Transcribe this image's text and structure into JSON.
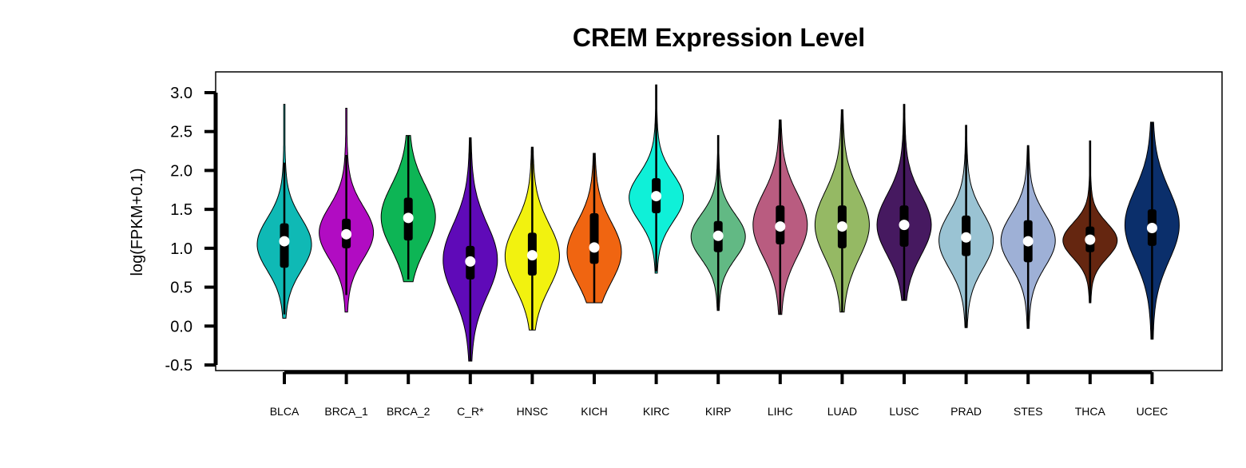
{
  "chart_data": {
    "type": "violin",
    "title": "CREM Expression Level",
    "xlabel": "",
    "ylabel": "log(FPKM+0.1)",
    "ylim": [
      -0.5,
      3.0
    ],
    "yticks": [
      "3.0",
      "2.5",
      "2.0",
      "1.5",
      "1.0",
      "0.5",
      "0.0",
      "-0.5"
    ],
    "grid": false,
    "legend": "none",
    "categories": [
      "BLCA",
      "BRCA_1",
      "BRCA_2",
      "C_R*",
      "HNSC",
      "KICH",
      "KIRC",
      "KIRP",
      "LIHC",
      "LUAD",
      "LUSC",
      "PRAD",
      "STES",
      "THCA",
      "UCEC"
    ],
    "colors": [
      "#0fb9b5",
      "#b10cc2",
      "#0db555",
      "#5f0ab8",
      "#f2f20f",
      "#f06511",
      "#0ff0d8",
      "#62b984",
      "#b95c80",
      "#95b964",
      "#461960",
      "#9ac3d3",
      "#9eb0d6",
      "#652610",
      "#0b2f6b"
    ],
    "series": [
      {
        "name": "BLCA",
        "min": 0.1,
        "q1": 0.75,
        "median": 1.09,
        "q3": 1.32,
        "max": 2.85,
        "whisker_low": 0.15,
        "whisker_high": 2.1,
        "mode": 1.05,
        "spread": 0.33
      },
      {
        "name": "BRCA_1",
        "min": 0.18,
        "q1": 1.0,
        "median": 1.18,
        "q3": 1.38,
        "max": 2.8,
        "whisker_low": 0.4,
        "whisker_high": 2.2,
        "mode": 1.2,
        "spread": 0.33
      },
      {
        "name": "BRCA_2",
        "min": 0.57,
        "q1": 1.1,
        "median": 1.39,
        "q3": 1.65,
        "max": 2.45,
        "whisker_low": 0.6,
        "whisker_high": 2.45,
        "mode": 1.4,
        "spread": 0.4
      },
      {
        "name": "C_R*",
        "min": -0.45,
        "q1": 0.6,
        "median": 0.83,
        "q3": 1.03,
        "max": 2.42,
        "whisker_low": -0.45,
        "whisker_high": 2.42,
        "mode": 0.85,
        "spread": 0.45
      },
      {
        "name": "HNSC",
        "min": -0.05,
        "q1": 0.65,
        "median": 0.91,
        "q3": 1.2,
        "max": 2.3,
        "whisker_low": -0.05,
        "whisker_high": 2.3,
        "mode": 0.9,
        "spread": 0.4
      },
      {
        "name": "KICH",
        "min": 0.3,
        "q1": 0.8,
        "median": 1.01,
        "q3": 1.45,
        "max": 2.22,
        "whisker_low": 0.3,
        "whisker_high": 2.22,
        "mode": 0.95,
        "spread": 0.38
      },
      {
        "name": "KIRC",
        "min": 0.68,
        "q1": 1.45,
        "median": 1.67,
        "q3": 1.9,
        "max": 3.1,
        "whisker_low": 0.7,
        "whisker_high": 3.1,
        "mode": 1.65,
        "spread": 0.3
      },
      {
        "name": "KIRP",
        "min": 0.2,
        "q1": 0.95,
        "median": 1.16,
        "q3": 1.35,
        "max": 2.45,
        "whisker_low": 0.2,
        "whisker_high": 2.45,
        "mode": 1.15,
        "spread": 0.28
      },
      {
        "name": "LIHC",
        "min": 0.15,
        "q1": 1.05,
        "median": 1.28,
        "q3": 1.55,
        "max": 2.65,
        "whisker_low": 0.15,
        "whisker_high": 2.65,
        "mode": 1.3,
        "spread": 0.4
      },
      {
        "name": "LUAD",
        "min": 0.18,
        "q1": 1.0,
        "median": 1.28,
        "q3": 1.55,
        "max": 2.78,
        "whisker_low": 0.18,
        "whisker_high": 2.78,
        "mode": 1.3,
        "spread": 0.42
      },
      {
        "name": "LUSC",
        "min": 0.33,
        "q1": 1.02,
        "median": 1.3,
        "q3": 1.55,
        "max": 2.85,
        "whisker_low": 0.33,
        "whisker_high": 2.85,
        "mode": 1.3,
        "spread": 0.38
      },
      {
        "name": "PRAD",
        "min": -0.02,
        "q1": 0.9,
        "median": 1.14,
        "q3": 1.42,
        "max": 2.58,
        "whisker_low": -0.02,
        "whisker_high": 2.58,
        "mode": 1.1,
        "spread": 0.35
      },
      {
        "name": "STES",
        "min": -0.03,
        "q1": 0.82,
        "median": 1.09,
        "q3": 1.36,
        "max": 2.32,
        "whisker_low": -0.03,
        "whisker_high": 2.32,
        "mode": 1.1,
        "spread": 0.33
      },
      {
        "name": "THCA",
        "min": 0.3,
        "q1": 0.95,
        "median": 1.11,
        "q3": 1.28,
        "max": 2.38,
        "whisker_low": 0.3,
        "whisker_high": 2.38,
        "mode": 1.1,
        "spread": 0.22
      },
      {
        "name": "UCEC",
        "min": -0.17,
        "q1": 1.03,
        "median": 1.26,
        "q3": 1.5,
        "max": 2.62,
        "whisker_low": -0.17,
        "whisker_high": 2.62,
        "mode": 1.3,
        "spread": 0.45
      }
    ]
  }
}
